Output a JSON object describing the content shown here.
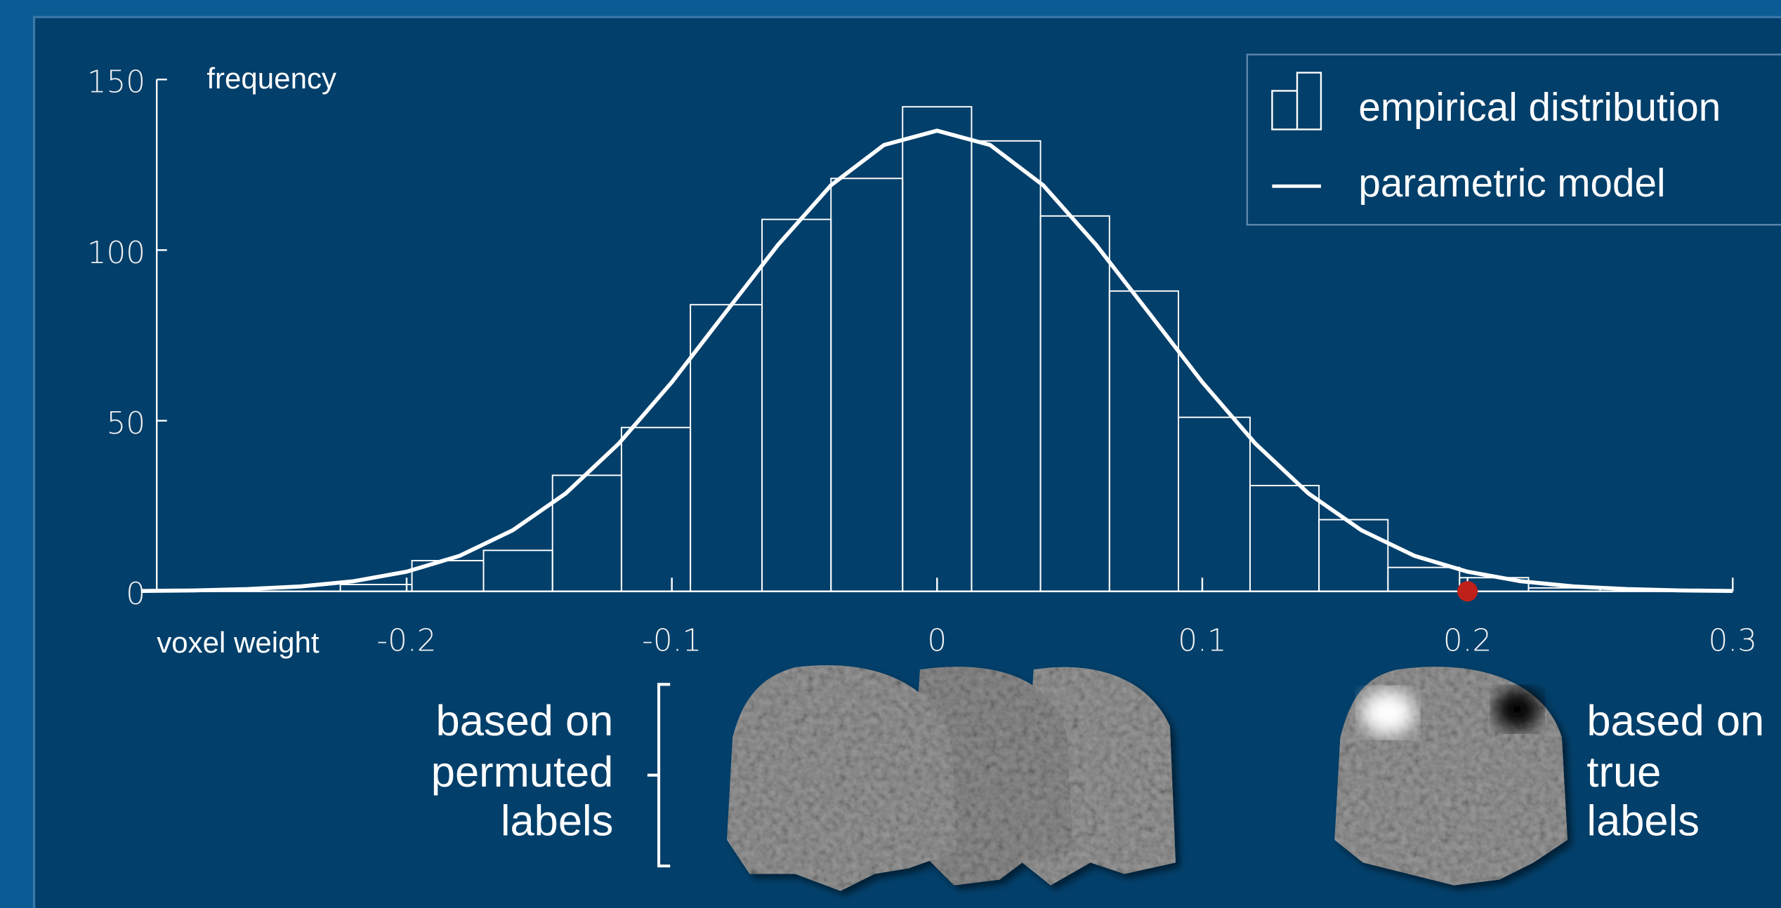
{
  "chart_data": {
    "type": "histogram",
    "y_label": "frequency",
    "x_label": "voxel weight",
    "xlim": [
      -0.3,
      0.3
    ],
    "ylim": [
      0,
      150
    ],
    "xticks": [
      -0.2,
      -0.1,
      0,
      0.1,
      0.2,
      0.3
    ],
    "yticks": [
      0,
      50,
      100,
      150
    ],
    "histogram": {
      "name": "empirical distribution",
      "color": "#ffffff",
      "bins": [
        -0.225,
        -0.198,
        -0.171,
        -0.145,
        -0.119,
        -0.093,
        -0.066,
        -0.04,
        -0.013,
        0.013,
        0.039,
        0.065,
        0.091,
        0.118,
        0.144,
        0.17,
        0.197,
        0.223,
        0.25
      ],
      "counts": [
        2,
        9,
        12,
        34,
        48,
        84,
        109,
        121,
        142,
        132,
        110,
        88,
        51,
        31,
        21,
        7,
        4,
        1
      ]
    },
    "model": {
      "name": "parametric model",
      "color": "#ffffff",
      "x": [
        -0.3,
        -0.28,
        -0.26,
        -0.24,
        -0.22,
        -0.2,
        -0.18,
        -0.16,
        -0.14,
        -0.12,
        -0.1,
        -0.08,
        -0.06,
        -0.04,
        -0.02,
        0,
        0.02,
        0.04,
        0.06,
        0.08,
        0.1,
        0.12,
        0.14,
        0.16,
        0.18,
        0.2,
        0.22,
        0.24,
        0.26,
        0.28,
        0.3
      ],
      "values": [
        0.11,
        0.28,
        0.65,
        1.43,
        2.96,
        5.74,
        10.4,
        17.9,
        28.7,
        43.3,
        61.3,
        81.5,
        101.5,
        119,
        130.8,
        135,
        130.8,
        119,
        101.5,
        81.5,
        61.3,
        43.3,
        28.7,
        17.9,
        10.4,
        5.74,
        2.96,
        1.43,
        0.65,
        0.28,
        0.11
      ]
    },
    "marker": {
      "x": 0.2,
      "y": 0,
      "color": "#c0201a"
    },
    "permuted_text": [
      "based on",
      "permuted",
      "labels"
    ],
    "true_text": [
      "based on",
      "true",
      "labels"
    ]
  }
}
